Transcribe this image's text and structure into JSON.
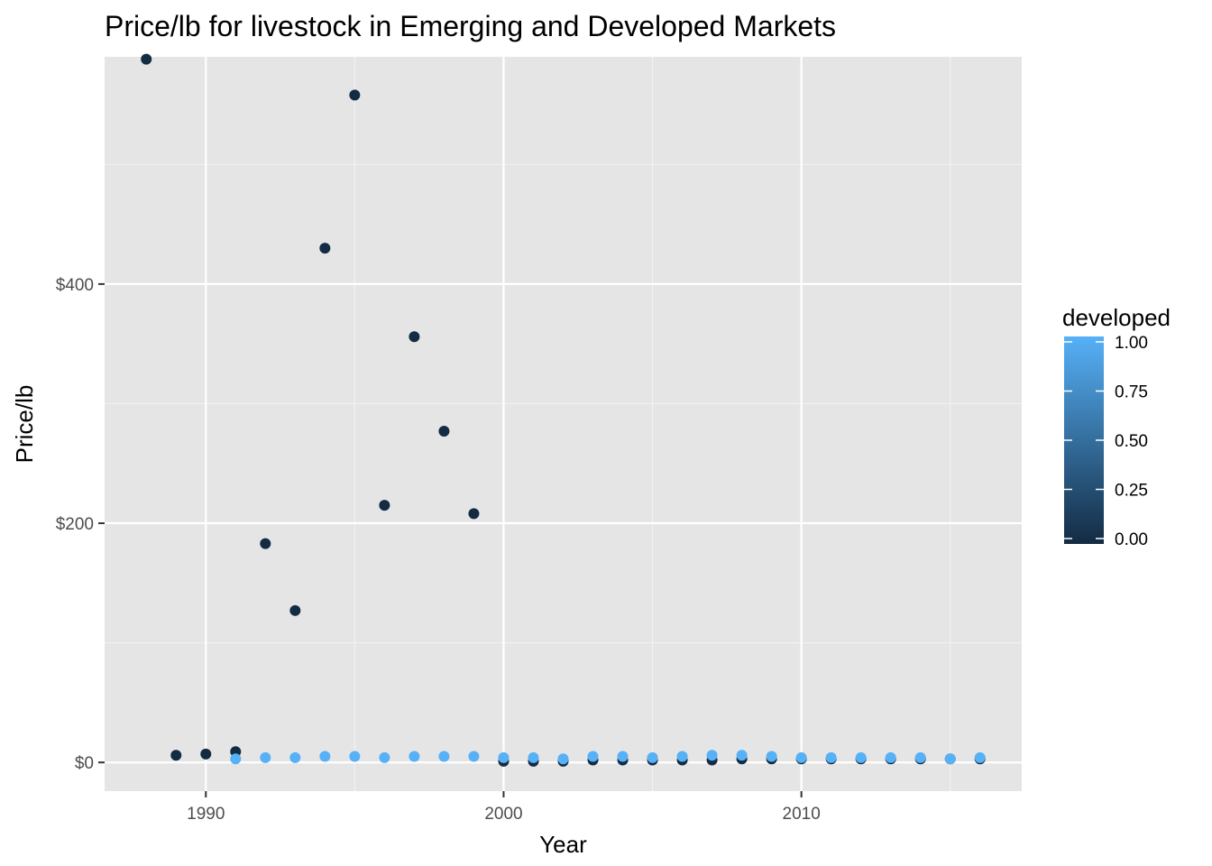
{
  "chart_data": {
    "type": "scatter",
    "title": "Price/lb for livestock in Emerging and Developed Markets",
    "xlabel": "Year",
    "ylabel": "Price/lb",
    "xlim": [
      1986.6,
      2017.4
    ],
    "ylim": [
      -24,
      590
    ],
    "x_ticks": [
      1990,
      2000,
      2010
    ],
    "x_tick_labels": [
      "1990",
      "2000",
      "2010"
    ],
    "x_minor_ticks": [
      1995,
      2005,
      2015
    ],
    "y_ticks": [
      0,
      200,
      400
    ],
    "y_tick_labels": [
      "$0",
      "$200",
      "$400"
    ],
    "y_minor_ticks": [
      100,
      300,
      500
    ],
    "grid": true,
    "panel_background": "#e5e5e5",
    "legend": {
      "title": "developed",
      "position": "right",
      "labels": [
        "1.00",
        "0.75",
        "0.50",
        "0.25",
        "0.00"
      ],
      "values": [
        1.0,
        0.75,
        0.5,
        0.25,
        0.0
      ],
      "color_low": "#132b43",
      "color_high": "#56b1f7"
    },
    "series": [
      {
        "developed": 0,
        "x": [
          1988,
          1989,
          1990,
          1991,
          1992,
          1993,
          1994,
          1995,
          1996,
          1997,
          1998,
          1999,
          2000,
          2001,
          2002,
          2003,
          2004,
          2005,
          2006,
          2007,
          2008,
          2009,
          2010,
          2011,
          2012,
          2013,
          2014,
          2015,
          2016
        ],
        "y": [
          588,
          6,
          7,
          9,
          183,
          127,
          430,
          558,
          215,
          356,
          277,
          208,
          1,
          1,
          1,
          2,
          2,
          2,
          2,
          2,
          3,
          3,
          3,
          3,
          3,
          3,
          3,
          3,
          3
        ]
      },
      {
        "developed": 1,
        "x": [
          1991,
          1992,
          1993,
          1994,
          1995,
          1996,
          1997,
          1998,
          1999,
          2000,
          2001,
          2002,
          2003,
          2004,
          2005,
          2006,
          2007,
          2008,
          2009,
          2010,
          2011,
          2012,
          2013,
          2014,
          2015,
          2016
        ],
        "y": [
          3,
          4,
          4,
          5,
          5,
          4,
          5,
          5,
          5,
          4,
          4,
          3,
          5,
          5,
          4,
          5,
          6,
          6,
          5,
          4,
          4,
          4,
          4,
          4,
          3,
          4
        ]
      }
    ]
  }
}
